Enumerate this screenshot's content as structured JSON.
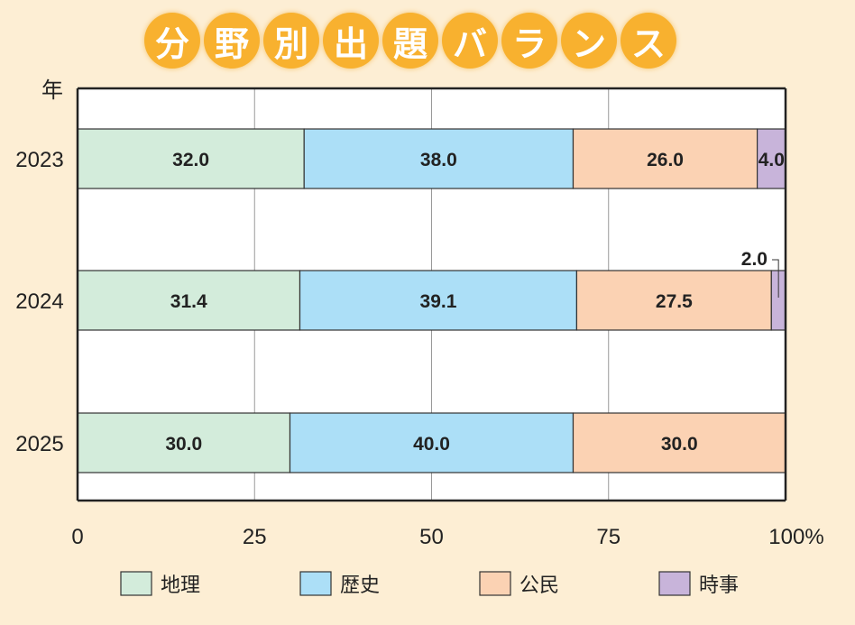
{
  "chart_data": {
    "type": "bar",
    "stacked": true,
    "orientation": "horizontal",
    "title": "分野別出題バランス",
    "ylabel": "年",
    "categories": [
      "2023",
      "2024",
      "2025"
    ],
    "series": [
      {
        "name": "地理",
        "values": [
          32.0,
          31.4,
          30.0
        ],
        "color": "#d3ecdb"
      },
      {
        "name": "歴史",
        "values": [
          38.0,
          39.1,
          40.0
        ],
        "color": "#acdff7"
      },
      {
        "name": "公民",
        "values": [
          26.0,
          27.5,
          30.0
        ],
        "color": "#fbd2b3"
      },
      {
        "name": "時事",
        "values": [
          4.0,
          2.0,
          0
        ],
        "color": "#c8b4da"
      }
    ],
    "xlim": [
      0,
      100
    ],
    "xticks": [
      "0",
      "25",
      "50",
      "75",
      "100%"
    ],
    "xtick_values": [
      0,
      25,
      50,
      75,
      100
    ],
    "grid": true,
    "legend": "bottom"
  },
  "colors": {
    "background": "#fdeed4",
    "title_circle": "#f8b12f"
  }
}
